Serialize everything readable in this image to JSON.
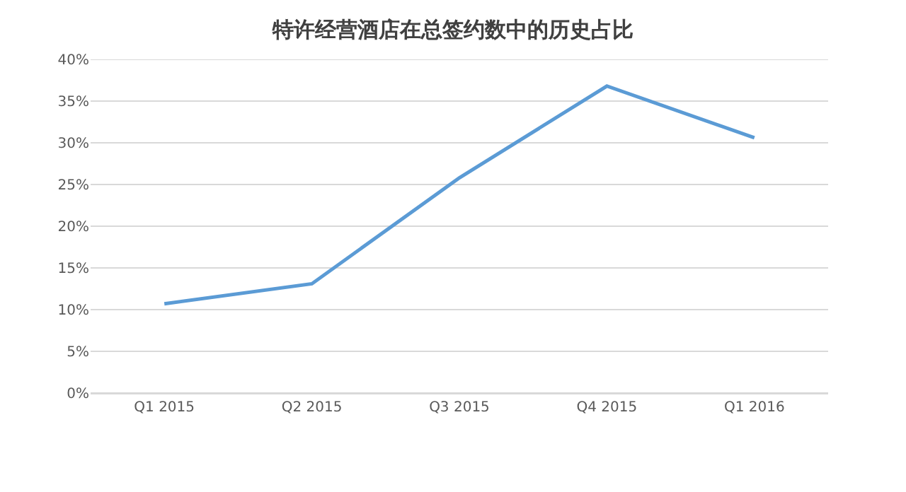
{
  "chart_data": {
    "type": "line",
    "title": "特许经营酒店在总签约数中的历史占比",
    "categories": [
      "Q1 2015",
      "Q2 2015",
      "Q3 2015",
      "Q4 2015",
      "Q1 2016"
    ],
    "series": [
      {
        "color": "#5b9bd5",
        "values": [
          10.7,
          13.1,
          25.8,
          36.8,
          30.6
        ]
      }
    ],
    "ylim": [
      0,
      40
    ],
    "yticks": [
      {
        "value": 0,
        "label": "0%"
      },
      {
        "value": 5,
        "label": "5%"
      },
      {
        "value": 10,
        "label": "10%"
      },
      {
        "value": 15,
        "label": "15%"
      },
      {
        "value": 20,
        "label": "20%"
      },
      {
        "value": 25,
        "label": "25%"
      },
      {
        "value": 30,
        "label": "30%"
      },
      {
        "value": 35,
        "label": "35%"
      },
      {
        "value": 40,
        "label": "40%"
      }
    ],
    "grid": "y",
    "marker": "none",
    "line_style": "solid"
  }
}
